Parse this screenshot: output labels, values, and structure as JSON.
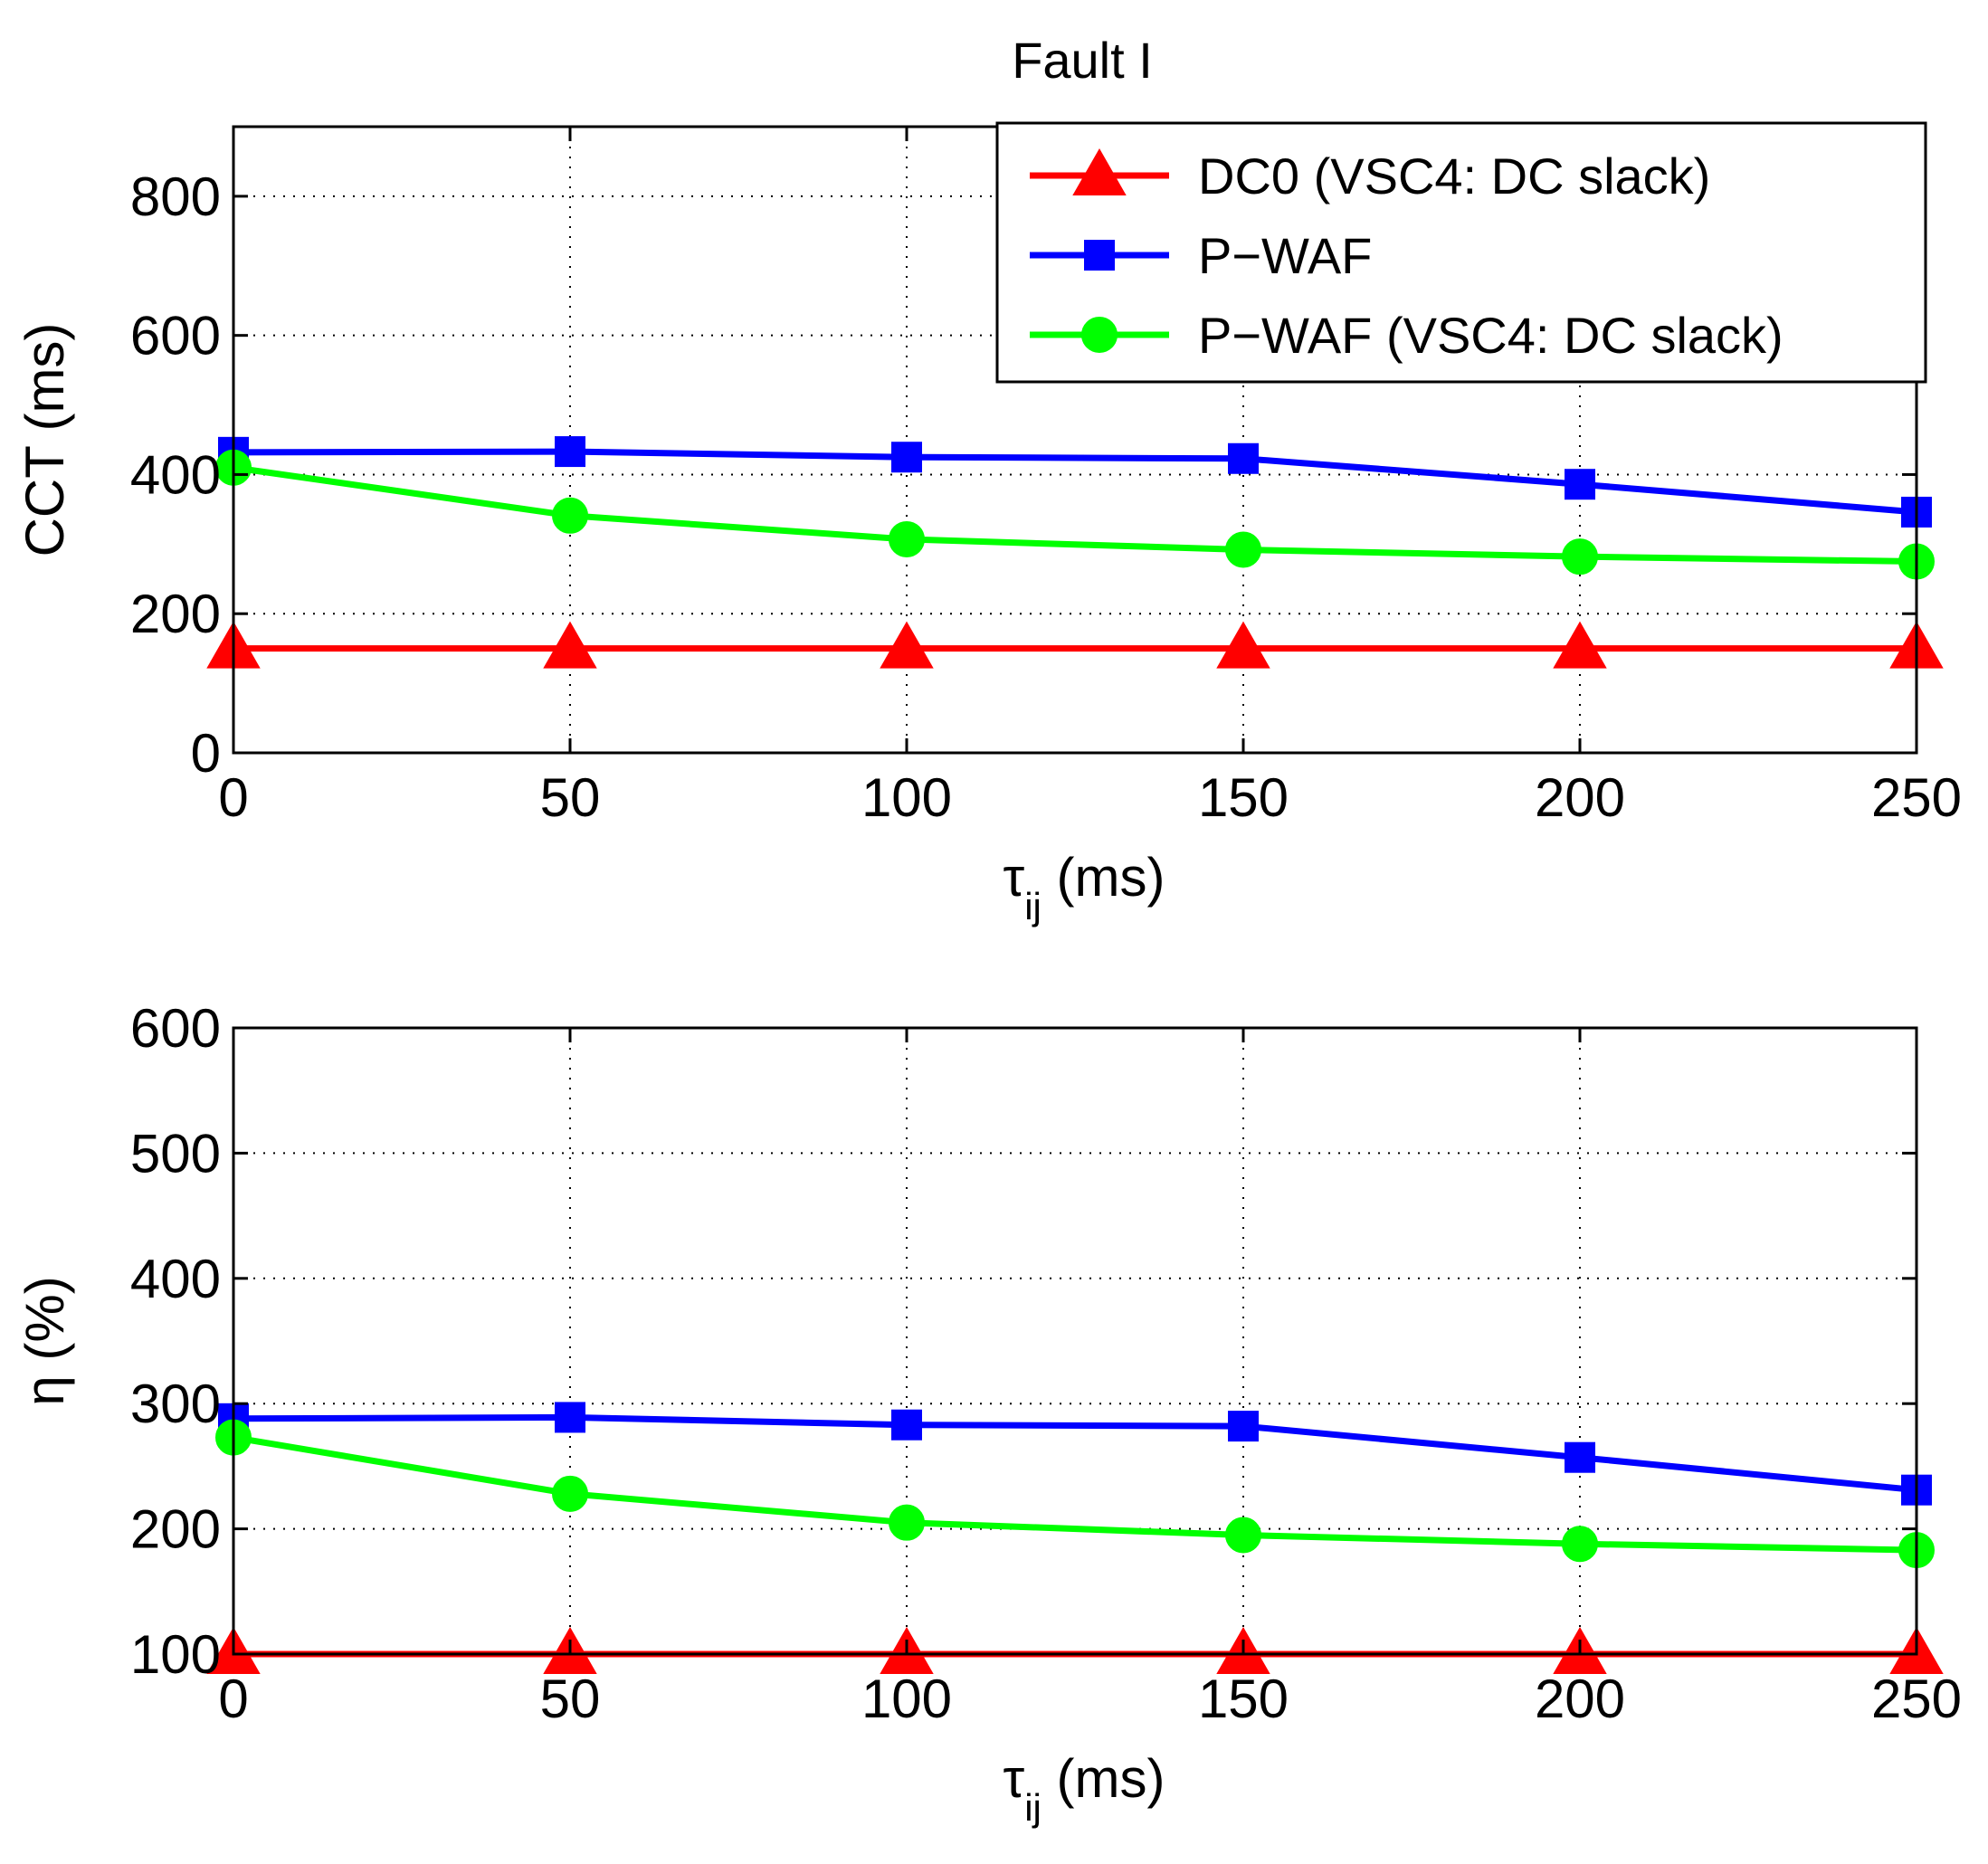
{
  "figure_title": "Fault I",
  "colors": {
    "dc0": "#ff0000",
    "pwaf": "#0000ff",
    "pwaf_slack": "#00ff00",
    "grid": "#000000",
    "axes": "#000000"
  },
  "chart_data": [
    {
      "type": "line",
      "title": "Fault I",
      "xlabel": {
        "symbol": "τ",
        "subscript": "ij",
        "unit": " (ms)"
      },
      "ylabel": "CCT (ms)",
      "xlim": [
        0,
        250
      ],
      "ylim": [
        0,
        900
      ],
      "xticks": [
        0,
        50,
        100,
        150,
        200,
        250
      ],
      "yticks": [
        0,
        200,
        400,
        600,
        800
      ],
      "xtick_labels": [
        "0",
        "50",
        "100",
        "150",
        "200",
        "250"
      ],
      "ytick_labels": [
        "0",
        "200",
        "400",
        "600",
        "800"
      ],
      "grid": true,
      "legend": {
        "placement": "top-right"
      },
      "x": [
        0,
        50,
        100,
        150,
        200,
        250
      ],
      "series": [
        {
          "name": "DC0 (VSC4: DC slack)",
          "color_key": "dc0",
          "marker": "triangle",
          "values": [
            150,
            150,
            150,
            150,
            150,
            150
          ]
        },
        {
          "name": "P−WAF",
          "color_key": "pwaf",
          "marker": "square",
          "values": [
            432,
            433,
            425,
            423,
            386,
            346
          ]
        },
        {
          "name": "P−WAF (VSC4: DC slack)",
          "color_key": "pwaf_slack",
          "marker": "circle",
          "values": [
            410,
            341,
            307,
            292,
            282,
            275
          ]
        }
      ]
    },
    {
      "type": "line",
      "title": "",
      "xlabel": {
        "symbol": "τ",
        "subscript": "ij",
        "unit": " (ms)"
      },
      "ylabel": "η (%)",
      "xlim": [
        0,
        250
      ],
      "ylim": [
        100,
        600
      ],
      "xticks": [
        0,
        50,
        100,
        150,
        200,
        250
      ],
      "yticks": [
        100,
        200,
        300,
        400,
        500,
        600
      ],
      "xtick_labels": [
        "0",
        "50",
        "100",
        "150",
        "200",
        "250"
      ],
      "ytick_labels": [
        "100",
        "200",
        "300",
        "400",
        "500",
        "600"
      ],
      "grid": true,
      "x": [
        0,
        50,
        100,
        150,
        200,
        250
      ],
      "series": [
        {
          "name": "DC0 (VSC4: DC slack)",
          "color_key": "dc0",
          "marker": "triangle",
          "values": [
            100,
            100,
            100,
            100,
            100,
            100
          ]
        },
        {
          "name": "P−WAF",
          "color_key": "pwaf",
          "marker": "square",
          "values": [
            288,
            289,
            283,
            282,
            257,
            231
          ]
        },
        {
          "name": "P−WAF (VSC4: DC slack)",
          "color_key": "pwaf_slack",
          "marker": "circle",
          "values": [
            273,
            228,
            205,
            195,
            188,
            183
          ]
        }
      ]
    }
  ]
}
